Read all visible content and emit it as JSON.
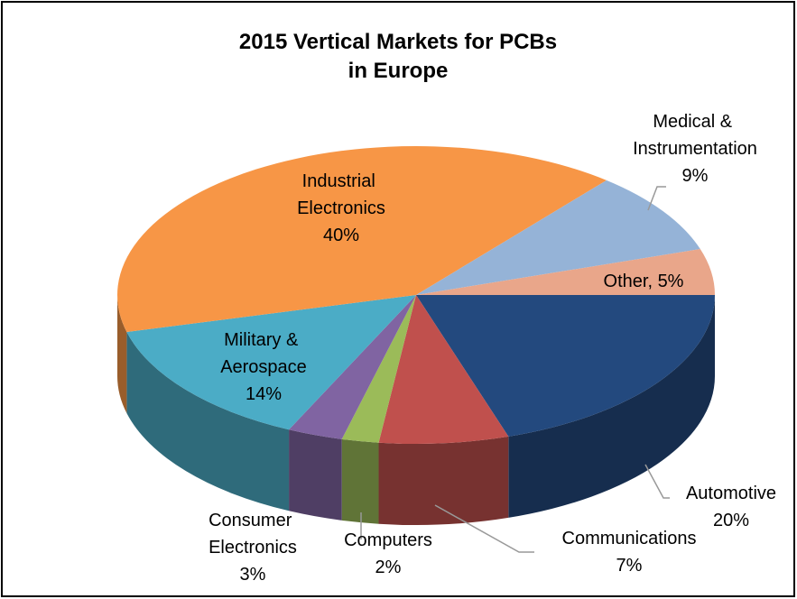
{
  "chart_data": {
    "type": "pie3d",
    "title": [
      "2015 Vertical Markets for PCBs",
      "in Europe"
    ],
    "categories": [
      "Automotive",
      "Communications",
      "Computers",
      "Consumer Electronics",
      "Military & Aerospace",
      "Industrial Electronics",
      "Medical & Instrumentation",
      "Other,"
    ],
    "values": [
      20,
      7,
      2,
      3,
      14,
      40,
      9,
      5
    ],
    "value_labels": [
      "20%",
      "7%",
      "2%",
      "3%",
      "14%",
      "40%",
      "9%",
      "5%"
    ],
    "colors": [
      "#23497e",
      "#c0504d",
      "#9bbb59",
      "#8064a2",
      "#4bacc6",
      "#f79646",
      "#95b3d7",
      "#e9a68a"
    ]
  }
}
